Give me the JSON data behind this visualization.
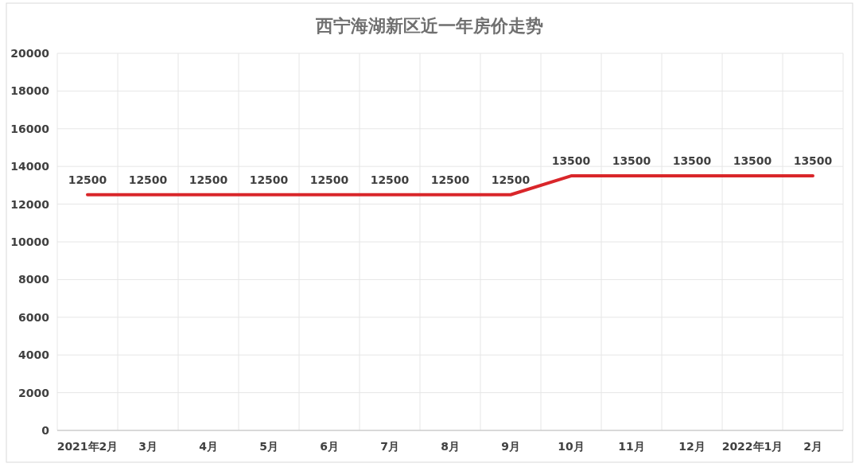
{
  "chart_data": {
    "type": "line",
    "title": "西宁海湖新区近一年房价走势",
    "categories": [
      "2021年2月",
      "3月",
      "4月",
      "5月",
      "6月",
      "7月",
      "8月",
      "9月",
      "10月",
      "11月",
      "12月",
      "2022年1月",
      "2月"
    ],
    "values": [
      12500,
      12500,
      12500,
      12500,
      12500,
      12500,
      12500,
      12500,
      13500,
      13500,
      13500,
      13500,
      13500
    ],
    "color": "#d9262a",
    "ylim": [
      0,
      20000
    ],
    "yticks": [
      0,
      2000,
      4000,
      6000,
      8000,
      10000,
      12000,
      14000,
      16000,
      18000,
      20000
    ],
    "grid": true,
    "data_labels": true
  }
}
